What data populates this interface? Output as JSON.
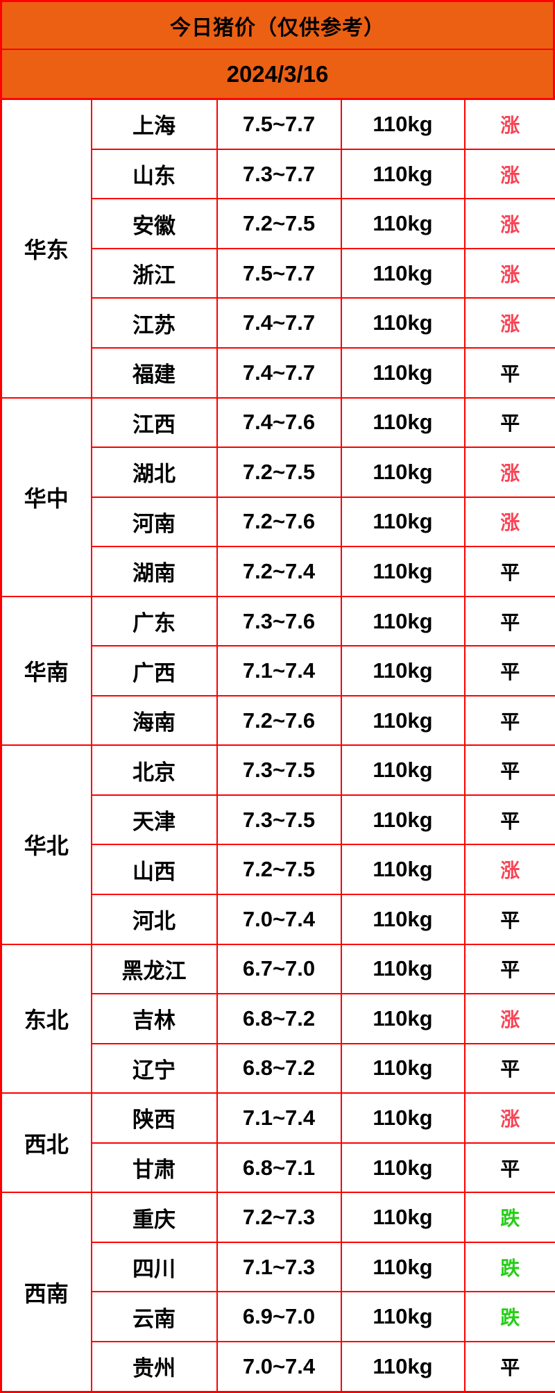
{
  "header": {
    "title": "今日猪价（仅供参考）",
    "date": "2024/3/16"
  },
  "colors": {
    "header_background": "#ec6014",
    "grid_border": "#fe0000",
    "status_up": "#fa4355",
    "status_flat": "#000000",
    "status_down": "#25ce15"
  },
  "table": {
    "weight_label": "110kg",
    "status_colors": {
      "涨": "#fa4355",
      "平": "#000000",
      "跌": "#25ce15"
    },
    "regions": [
      {
        "name": "华东",
        "rows": [
          {
            "city": "上海",
            "price": "7.5~7.7",
            "weight": "110kg",
            "status": "涨"
          },
          {
            "city": "山东",
            "price": "7.3~7.7",
            "weight": "110kg",
            "status": "涨"
          },
          {
            "city": "安徽",
            "price": "7.2~7.5",
            "weight": "110kg",
            "status": "涨"
          },
          {
            "city": "浙江",
            "price": "7.5~7.7",
            "weight": "110kg",
            "status": "涨"
          },
          {
            "city": "江苏",
            "price": "7.4~7.7",
            "weight": "110kg",
            "status": "涨"
          },
          {
            "city": "福建",
            "price": "7.4~7.7",
            "weight": "110kg",
            "status": "平"
          }
        ]
      },
      {
        "name": "华中",
        "rows": [
          {
            "city": "江西",
            "price": "7.4~7.6",
            "weight": "110kg",
            "status": "平"
          },
          {
            "city": "湖北",
            "price": "7.2~7.5",
            "weight": "110kg",
            "status": "涨"
          },
          {
            "city": "河南",
            "price": "7.2~7.6",
            "weight": "110kg",
            "status": "涨"
          },
          {
            "city": "湖南",
            "price": "7.2~7.4",
            "weight": "110kg",
            "status": "平"
          }
        ]
      },
      {
        "name": "华南",
        "rows": [
          {
            "city": "广东",
            "price": "7.3~7.6",
            "weight": "110kg",
            "status": "平"
          },
          {
            "city": "广西",
            "price": "7.1~7.4",
            "weight": "110kg",
            "status": "平"
          },
          {
            "city": "海南",
            "price": "7.2~7.6",
            "weight": "110kg",
            "status": "平"
          }
        ]
      },
      {
        "name": "华北",
        "rows": [
          {
            "city": "北京",
            "price": "7.3~7.5",
            "weight": "110kg",
            "status": "平"
          },
          {
            "city": "天津",
            "price": "7.3~7.5",
            "weight": "110kg",
            "status": "平"
          },
          {
            "city": "山西",
            "price": "7.2~7.5",
            "weight": "110kg",
            "status": "涨"
          },
          {
            "city": "河北",
            "price": "7.0~7.4",
            "weight": "110kg",
            "status": "平"
          }
        ]
      },
      {
        "name": "东北",
        "rows": [
          {
            "city": "黑龙江",
            "price": "6.7~7.0",
            "weight": "110kg",
            "status": "平"
          },
          {
            "city": "吉林",
            "price": "6.8~7.2",
            "weight": "110kg",
            "status": "涨"
          },
          {
            "city": "辽宁",
            "price": "6.8~7.2",
            "weight": "110kg",
            "status": "平"
          }
        ]
      },
      {
        "name": "西北",
        "rows": [
          {
            "city": "陕西",
            "price": "7.1~7.4",
            "weight": "110kg",
            "status": "涨"
          },
          {
            "city": "甘肃",
            "price": "6.8~7.1",
            "weight": "110kg",
            "status": "平"
          }
        ]
      },
      {
        "name": "西南",
        "rows": [
          {
            "city": "重庆",
            "price": "7.2~7.3",
            "weight": "110kg",
            "status": "跌"
          },
          {
            "city": "四川",
            "price": "7.1~7.3",
            "weight": "110kg",
            "status": "跌"
          },
          {
            "city": "云南",
            "price": "6.9~7.0",
            "weight": "110kg",
            "status": "跌"
          },
          {
            "city": "贵州",
            "price": "7.0~7.4",
            "weight": "110kg",
            "status": "平"
          }
        ]
      }
    ]
  }
}
